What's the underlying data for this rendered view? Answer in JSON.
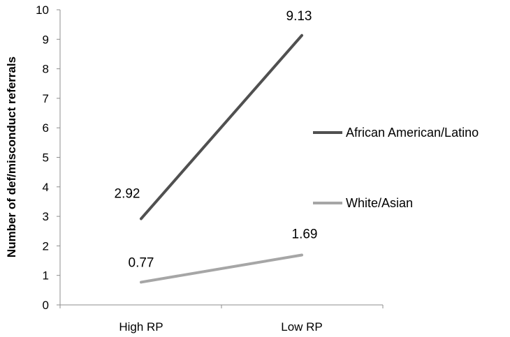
{
  "chart_data": {
    "type": "line",
    "categories": [
      "High RP",
      "Low  RP"
    ],
    "series": [
      {
        "name": "African American/Latino",
        "values": [
          2.92,
          9.13
        ],
        "color": "#505050",
        "labels": [
          "2.92",
          "9.13"
        ]
      },
      {
        "name": "White/Asian",
        "values": [
          0.77,
          1.69
        ],
        "color": "#a6a6a6",
        "labels": [
          "0.77",
          "1.69"
        ]
      }
    ],
    "ylabel": "Number of def/misconduct referrals",
    "xlabel": "",
    "ylim": [
      0,
      10
    ],
    "yticks": [
      "0",
      "1",
      "2",
      "3",
      "4",
      "5",
      "6",
      "7",
      "8",
      "9",
      "10"
    ],
    "grid": false,
    "legend_position": "right"
  }
}
